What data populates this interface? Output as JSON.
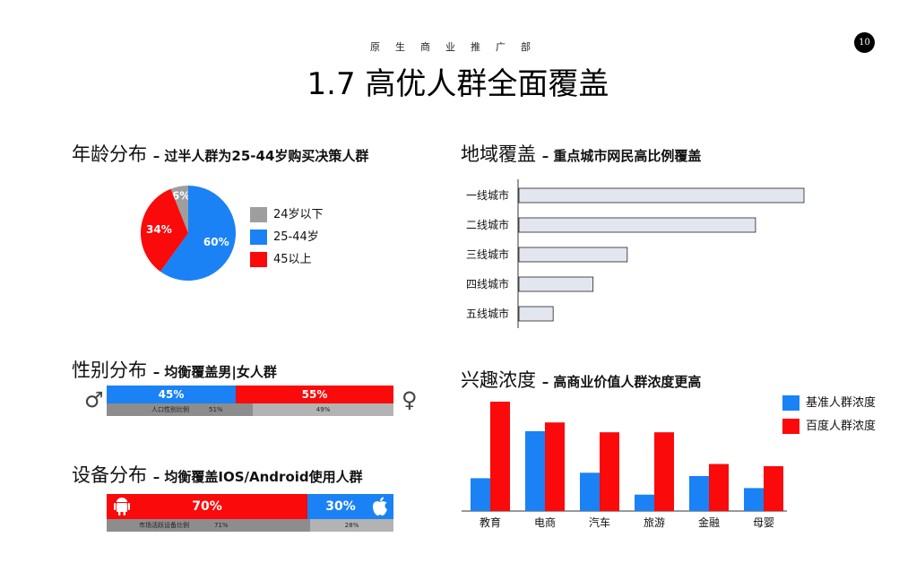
{
  "header": {
    "department": "原生商业推广部",
    "title": "1.7 高优人群全面覆盖",
    "page_number": "10"
  },
  "age": {
    "heading": "年龄分布",
    "subheading": "– 过半人群为25-44岁购买决策人群",
    "legend": [
      {
        "label": "24岁以下",
        "color": "#9e9e9e"
      },
      {
        "label": "25-44岁",
        "color": "#1a82f5"
      },
      {
        "label": "45以上",
        "color": "#fa0a0a"
      }
    ]
  },
  "gender": {
    "heading": "性别分布",
    "subheading": "– 均衡覆盖男|女人群",
    "male_symbol": "♂",
    "female_symbol": "♀",
    "sub_label": "人口性别比例",
    "sub_male_pct": "51%",
    "sub_female_pct": "49%",
    "sub_male_share": 0.51
  },
  "device": {
    "heading": "设备分布",
    "subheading": "– 均衡覆盖IOS/Android使用人群",
    "sub_label": "市场活跃设备比例",
    "sub_android_pct": "71%",
    "sub_ios_pct": "28%",
    "sub_android_share": 0.71,
    "android_icon": "android-icon",
    "apple_icon": "apple-icon"
  },
  "region": {
    "heading": "地域覆盖",
    "subheading": "– 重点城市网民高比例覆盖"
  },
  "interest": {
    "heading": "兴趣浓度",
    "subheading": "– 高商业价值人群浓度更高",
    "legend": [
      {
        "label": "基准人群浓度",
        "color": "#1a82f5"
      },
      {
        "label": "百度人群浓度",
        "color": "#fa0a0a"
      }
    ]
  },
  "chart_data": [
    {
      "type": "pie",
      "categories": [
        "24岁以下",
        "25-44岁",
        "45以上"
      ],
      "values": [
        6,
        60,
        34
      ],
      "labels": [
        "6%",
        "60%",
        "34%"
      ],
      "colors": [
        "#9e9e9e",
        "#1a82f5",
        "#fa0a0a"
      ]
    },
    {
      "type": "bar",
      "orientation": "horizontal",
      "categories": [
        "一线城市",
        "二线城市",
        "三线城市",
        "四线城市",
        "五线城市"
      ],
      "values": [
        100,
        83,
        38,
        26,
        12
      ],
      "xlim": [
        0,
        100
      ],
      "bar_color": "#e4e6ef"
    },
    {
      "type": "bar",
      "stacked": true,
      "orientation": "horizontal",
      "categories": [
        "男",
        "女"
      ],
      "values": [
        45,
        55
      ],
      "labels": [
        "45%",
        "55%"
      ],
      "colors": [
        "#1a82f5",
        "#fa0a0a"
      ]
    },
    {
      "type": "bar",
      "stacked": true,
      "orientation": "horizontal",
      "categories": [
        "Android",
        "iOS"
      ],
      "values": [
        70,
        30
      ],
      "labels": [
        "70%",
        "30%"
      ],
      "colors": [
        "#fa0a0a",
        "#1a82f5"
      ]
    },
    {
      "type": "bar",
      "categories": [
        "教育",
        "电商",
        "汽车",
        "旅游",
        "金融",
        "母婴"
      ],
      "series": [
        {
          "name": "基准人群浓度",
          "values": [
            30,
            73,
            35,
            15,
            32,
            21
          ],
          "color": "#1a82f5"
        },
        {
          "name": "百度人群浓度",
          "values": [
            100,
            81,
            72,
            72,
            43,
            41
          ],
          "color": "#fa0a0a"
        }
      ],
      "ylim": [
        0,
        100
      ]
    }
  ]
}
